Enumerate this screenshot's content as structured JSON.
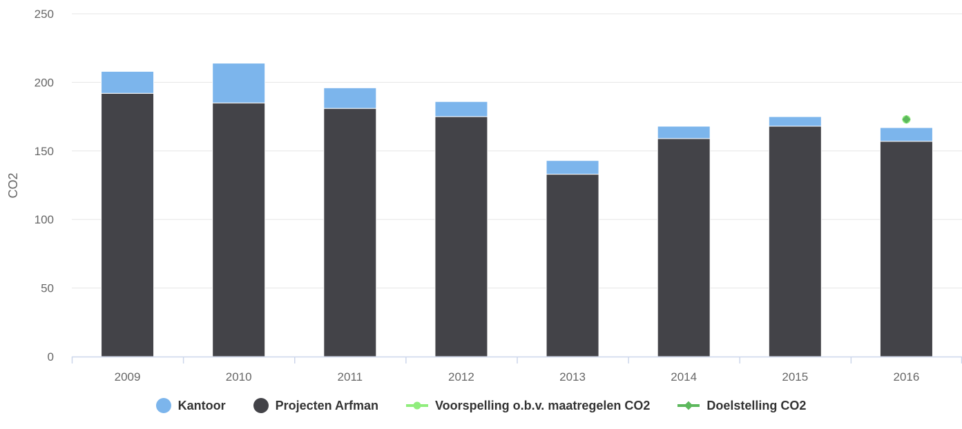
{
  "chart_data": {
    "type": "bar",
    "stacked": true,
    "title": "",
    "ylabel": "CO2",
    "xlabel": "",
    "ylim": [
      0,
      250
    ],
    "yticks": [
      0,
      50,
      100,
      150,
      200,
      250
    ],
    "grid": true,
    "legend_position": "bottom",
    "categories": [
      "2009",
      "2010",
      "2011",
      "2012",
      "2013",
      "2014",
      "2015",
      "2016"
    ],
    "series": [
      {
        "name": "Kantoor",
        "type": "bar",
        "color": "#7cb5ec",
        "values": [
          16,
          29,
          15,
          11,
          10,
          9,
          7,
          10
        ]
      },
      {
        "name": "Projecten Arfman",
        "type": "bar",
        "color": "#434348",
        "values": [
          192,
          185,
          181,
          175,
          133,
          159,
          168,
          157
        ]
      },
      {
        "name": "Voorspelling o.b.v. maatregelen CO2",
        "type": "line",
        "marker": "circle",
        "color": "#90ed7d",
        "values": [
          null,
          null,
          null,
          null,
          null,
          null,
          null,
          173
        ]
      },
      {
        "name": "Doelstelling CO2",
        "type": "line",
        "marker": "diamond",
        "color": "#5cb85c",
        "values": [
          null,
          null,
          null,
          null,
          null,
          null,
          null,
          173
        ]
      }
    ]
  }
}
